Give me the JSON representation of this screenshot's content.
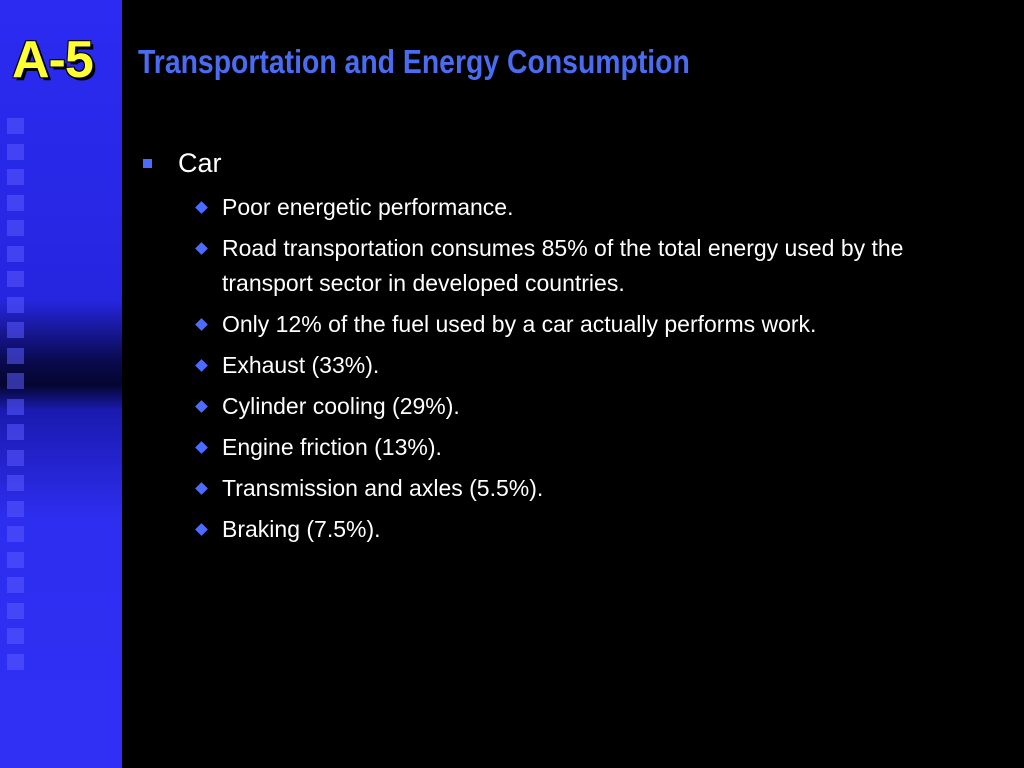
{
  "badge": "A-5",
  "title": "Transportation and Energy Consumption",
  "colors": {
    "background": "#000000",
    "side_band": "#2b2bf2",
    "badge_text": "#ffff33",
    "title_text": "#4a6cf0",
    "bullet": "#4d6cff",
    "body_text": "#ffffff"
  },
  "bullets": [
    {
      "text": "Car",
      "sub_bullets": [
        "Poor energetic performance.",
        "Road transportation consumes 85% of the total energy used by the transport sector in developed countries.",
        "Only 12% of the fuel used by a car actually performs work.",
        "Exhaust (33%).",
        "Cylinder cooling (29%).",
        "Engine friction (13%).",
        "Transmission and axles (5.5%).",
        "Braking (7.5%)."
      ]
    }
  ]
}
